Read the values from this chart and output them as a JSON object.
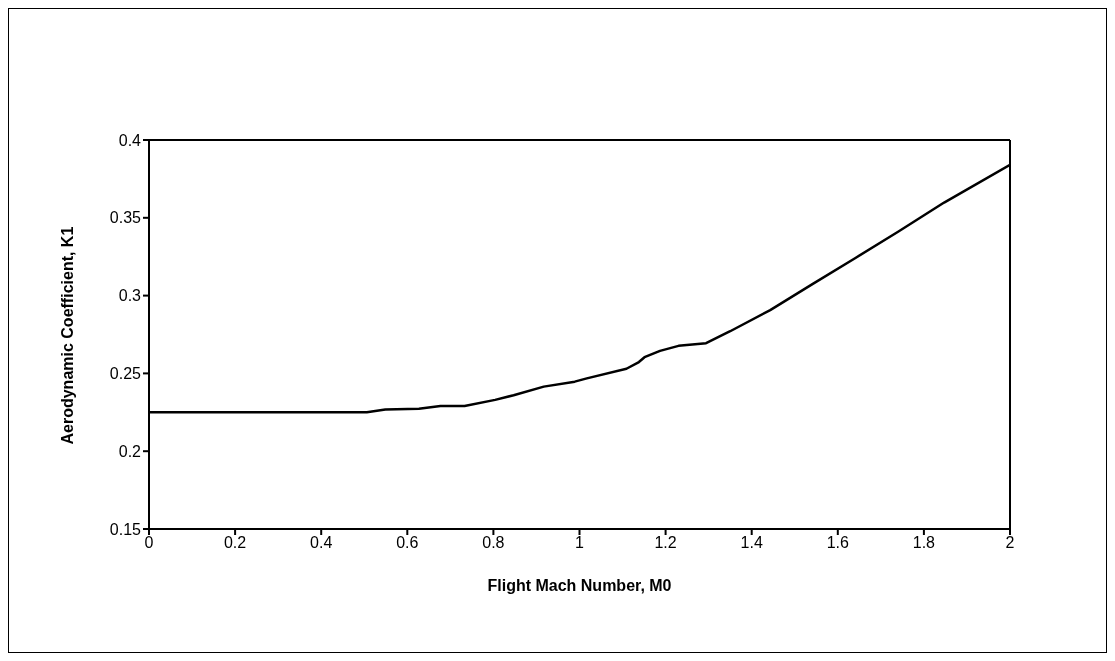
{
  "chart_data": {
    "type": "line",
    "xlabel": "Flight Mach Number, M0",
    "ylabel": "Aerodynamic Coefficient, K1",
    "x": [
      0,
      0.506,
      0.549,
      0.627,
      0.677,
      0.733,
      0.804,
      0.847,
      0.917,
      0.989,
      1.017,
      1.109,
      1.138,
      1.151,
      1.187,
      1.23,
      1.294,
      1.35,
      1.443,
      1.542,
      1.641,
      1.74,
      1.847,
      2
    ],
    "series": [
      {
        "color": "#000000",
        "values": [
          0.225,
          0.225,
          0.2268,
          0.2273,
          0.229,
          0.229,
          0.233,
          0.236,
          0.2415,
          0.2447,
          0.2468,
          0.253,
          0.2573,
          0.2604,
          0.2645,
          0.2677,
          0.2694,
          0.2771,
          0.2907,
          0.3075,
          0.3242,
          0.341,
          0.3598,
          0.384
        ]
      }
    ],
    "xlim": [
      0,
      2
    ],
    "xticks": [
      0,
      0.2,
      0.4,
      0.6,
      0.8,
      1,
      1.2,
      1.4,
      1.6,
      1.8,
      2
    ],
    "ylim": [
      0.15,
      0.4
    ],
    "yticks": [
      0.15,
      0.2,
      0.25,
      0.3,
      0.35,
      0.4
    ],
    "grid": false,
    "legend": false,
    "marker": "none",
    "line_style": "solid"
  }
}
